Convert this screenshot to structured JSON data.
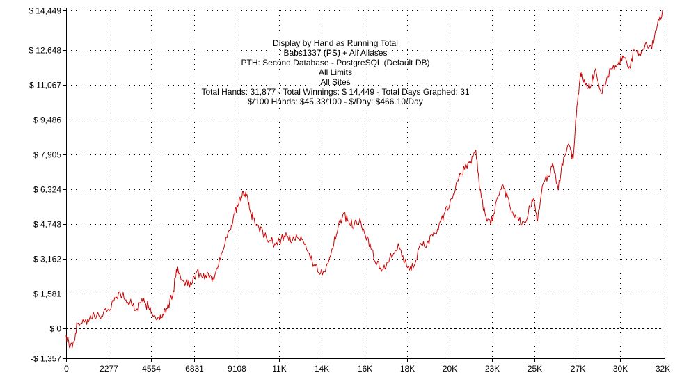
{
  "chart_data": {
    "type": "line",
    "title_lines": [
      "Display by Hand as Running Total",
      "Babs1337 (PS) + All Aliases",
      "PTH: Second Database - PostgreSQL (Default DB)",
      "All Limits",
      "All Sites",
      "Total Hands: 31,877 - Total Winnings: $ 14,449 - Total Days Graphed: 31",
      "$/100 Hands: $45.33/100 - $/Day: $466.10/Day"
    ],
    "xlabel": "",
    "ylabel": "",
    "xlim": [
      0,
      31877
    ],
    "ylim": [
      -1357,
      14449
    ],
    "x_ticks": [
      {
        "value": 0,
        "label": "0"
      },
      {
        "value": 2277,
        "label": "2277"
      },
      {
        "value": 4554,
        "label": "4554"
      },
      {
        "value": 6831,
        "label": "6831"
      },
      {
        "value": 9108,
        "label": "9108"
      },
      {
        "value": 11385,
        "label": "11K"
      },
      {
        "value": 13662,
        "label": "14K"
      },
      {
        "value": 15939,
        "label": "16K"
      },
      {
        "value": 18216,
        "label": "18K"
      },
      {
        "value": 20493,
        "label": "20K"
      },
      {
        "value": 22770,
        "label": "23K"
      },
      {
        "value": 25047,
        "label": "25K"
      },
      {
        "value": 27324,
        "label": "27K"
      },
      {
        "value": 29601,
        "label": "30K"
      },
      {
        "value": 31877,
        "label": "32K"
      }
    ],
    "y_ticks": [
      {
        "value": 14449,
        "label": "$ 14,449"
      },
      {
        "value": 12648,
        "label": "$ 12,648"
      },
      {
        "value": 11067,
        "label": "$ 11,067"
      },
      {
        "value": 9486,
        "label": "$ 9,486"
      },
      {
        "value": 7905,
        "label": "$ 7,905"
      },
      {
        "value": 6324,
        "label": "$ 6,324"
      },
      {
        "value": 4743,
        "label": "$ 4,743"
      },
      {
        "value": 3162,
        "label": "$ 3,162"
      },
      {
        "value": 1581,
        "label": "$ 1,581"
      },
      {
        "value": 0,
        "label": "$ 0"
      },
      {
        "value": -1357,
        "label": "-$ 1,357"
      }
    ],
    "grid": true,
    "zero_line": true,
    "colors": {
      "line": "#cc0000",
      "grid": "#000000",
      "axis": "#000000"
    },
    "series": [
      {
        "x": [
          0,
          200,
          400,
          600,
          900,
          1200,
          1500,
          1800,
          2100,
          2300,
          2600,
          2900,
          3200,
          3500,
          3800,
          4100,
          4400,
          4700,
          5000,
          5200,
          5400,
          5700,
          5900,
          6100,
          6400,
          6700,
          7000,
          7300,
          7600,
          7900,
          8200,
          8500,
          8800,
          9000,
          9200,
          9400,
          9600,
          9800,
          10000,
          10300,
          10600,
          10900,
          11200,
          11500,
          11800,
          12100,
          12400,
          12700,
          13000,
          13300,
          13600,
          13900,
          14200,
          14500,
          14800,
          15100,
          15400,
          15700,
          16000,
          16300,
          16600,
          16900,
          17200,
          17500,
          17800,
          18100,
          18400,
          18700,
          19000,
          19300,
          19600,
          19900,
          20200,
          20500,
          20800,
          21100,
          21400,
          21600,
          21900,
          22100,
          22400,
          22700,
          23000,
          23300,
          23600,
          23900,
          24200,
          24500,
          24800,
          25000,
          25200,
          25500,
          25800,
          26000,
          26300,
          26600,
          26900,
          27100,
          27300,
          27500,
          27700,
          28000,
          28300,
          28600,
          28900,
          29200,
          29500,
          29800,
          30100,
          30400,
          30700,
          31000,
          31300,
          31600,
          31877
        ],
        "y": [
          -300,
          -900,
          -600,
          200,
          400,
          300,
          600,
          500,
          900,
          800,
          1400,
          1600,
          1300,
          1100,
          900,
          1200,
          1000,
          600,
          400,
          600,
          900,
          1500,
          2700,
          2400,
          2100,
          2000,
          2600,
          2300,
          2500,
          2200,
          3200,
          3900,
          4500,
          5200,
          5600,
          6000,
          6200,
          5400,
          5000,
          4600,
          4200,
          4000,
          3800,
          4100,
          4200,
          4000,
          4100,
          3900,
          3400,
          2800,
          2500,
          2800,
          3600,
          4400,
          5200,
          4900,
          4700,
          5000,
          4200,
          3600,
          2900,
          2700,
          3000,
          3400,
          3700,
          3000,
          2800,
          3100,
          3800,
          3900,
          4200,
          4500,
          5200,
          5600,
          6300,
          7000,
          7400,
          7600,
          8100,
          6300,
          5200,
          4700,
          5800,
          6500,
          6000,
          5200,
          4900,
          4800,
          5500,
          5900,
          4900,
          6600,
          6900,
          7500,
          6300,
          7800,
          8300,
          7700,
          10100,
          11600,
          11300,
          10900,
          11800,
          10700,
          11400,
          11800,
          12000,
          12300,
          11900,
          12600,
          12400,
          13000,
          12700,
          13800,
          14449
        ]
      }
    ]
  }
}
